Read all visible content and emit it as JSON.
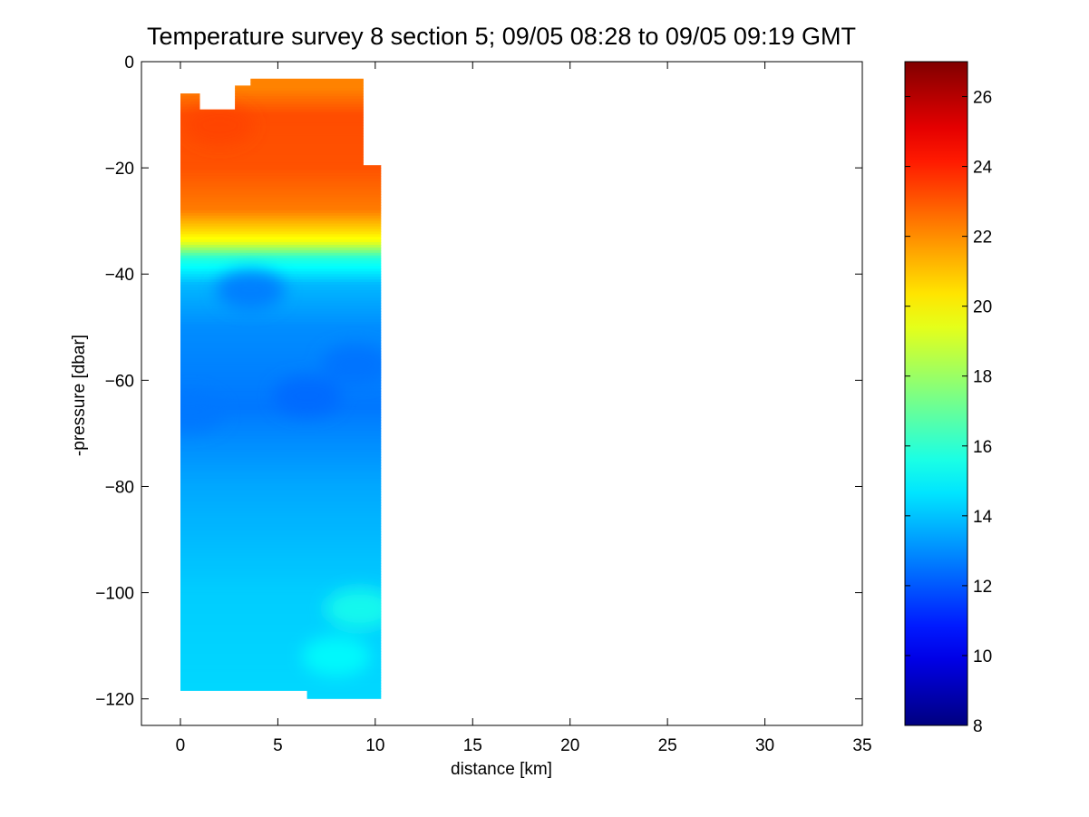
{
  "chart_data": {
    "type": "heatmap",
    "title": "Temperature survey 8 section 5; 09/05 08:28 to 09/05 09:19 GMT",
    "xlabel": "distance [km]",
    "ylabel": "-pressure [dbar]",
    "xlim": [
      -2,
      35
    ],
    "ylim": [
      -125,
      0
    ],
    "xticks": [
      0,
      5,
      10,
      15,
      20,
      25,
      30,
      35
    ],
    "yticks": [
      0,
      -20,
      -40,
      -60,
      -80,
      -100,
      -120
    ],
    "colorbar": {
      "colormap": "jet",
      "range": [
        8,
        27
      ],
      "ticks": [
        8,
        10,
        12,
        14,
        16,
        18,
        20,
        22,
        24,
        26
      ],
      "placement": "right"
    },
    "x": [
      0,
      1,
      2.7,
      3.6,
      6.5,
      9.4,
      10.3
    ],
    "depth_profile": [
      {
        "depth": -5,
        "temperature": 22.2
      },
      {
        "depth": -10,
        "temperature": 23.2
      },
      {
        "depth": -20,
        "temperature": 23.1
      },
      {
        "depth": -28,
        "temperature": 22.3
      },
      {
        "depth": -32,
        "temperature": 20.5
      },
      {
        "depth": -34,
        "temperature": 19.5
      },
      {
        "depth": -37,
        "temperature": 15.8
      },
      {
        "depth": -42,
        "temperature": 13.8
      },
      {
        "depth": -50,
        "temperature": 13.0
      },
      {
        "depth": -65,
        "temperature": 12.6
      },
      {
        "depth": -80,
        "temperature": 13.5
      },
      {
        "depth": -100,
        "temperature": 14.2
      },
      {
        "depth": -120,
        "temperature": 14.4
      }
    ],
    "features": [
      {
        "x": 3.6,
        "depth": -43,
        "temperature": 12.6
      },
      {
        "x": 6.5,
        "depth": -63,
        "temperature": 12.3
      },
      {
        "x": 9.0,
        "depth": -57,
        "temperature": 12.5
      },
      {
        "x": 0.5,
        "depth": -66,
        "temperature": 12.6
      },
      {
        "x": 9.2,
        "depth": -103,
        "temperature": 15.5
      },
      {
        "x": 8.0,
        "depth": -112,
        "temperature": 15.2
      },
      {
        "x": 2.0,
        "depth": -12,
        "temperature": 23.4
      }
    ],
    "outline": [
      [
        0,
        -6
      ],
      [
        1,
        -6
      ],
      [
        1,
        -9
      ],
      [
        2.8,
        -9
      ],
      [
        2.8,
        -4.5
      ],
      [
        3.6,
        -4.5
      ],
      [
        3.6,
        -3.2
      ],
      [
        9.4,
        -3.2
      ],
      [
        9.4,
        -19.5
      ],
      [
        10.3,
        -19.5
      ],
      [
        10.3,
        -120
      ],
      [
        6.5,
        -120
      ],
      [
        6.5,
        -118.5
      ],
      [
        0,
        -118.5
      ]
    ]
  }
}
